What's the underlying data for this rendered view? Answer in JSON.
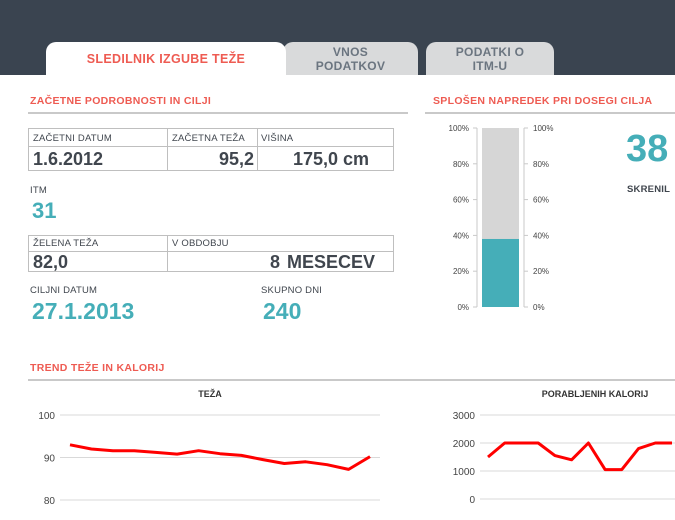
{
  "tabs": [
    {
      "label": "SLEDILNIK IZGUBE TEŽE"
    },
    {
      "label": "VNOS\nPODATKOV"
    },
    {
      "label": "PODATKI O\nITM-U"
    }
  ],
  "details": {
    "title": "ZAČETNE PODROBNOSTI IN CILJI",
    "start_date_label": "ZAČETNI DATUM",
    "start_date": "1.6.2012",
    "start_weight_label": "ZAČETNA TEŽA",
    "start_weight": "95,2",
    "height_label": "VIŠINA",
    "height": "175,0 cm",
    "bmi_label": "ITM",
    "bmi": "31",
    "goal_weight_label": "ŽELENA TEŽA",
    "goal_weight": "82,0",
    "period_label": "V OBDOBJU",
    "period_value": "8",
    "period_unit": "MESECEV",
    "goal_date_label": "CILJNI DATUM",
    "goal_date": "27.1.2013",
    "total_days_label": "SKUPNO DNI",
    "total_days": "240"
  },
  "progress": {
    "title": "SPLOŠEN NAPREDEK PRI DOSEGI CILJA",
    "percent_big": "38",
    "sub_label": "SKRENIL",
    "fill_fraction": 0.38,
    "ticks": [
      "100%",
      "80%",
      "60%",
      "40%",
      "20%",
      "0%"
    ]
  },
  "trend": {
    "title": "TREND TEŽE IN KALORIJ"
  },
  "colors": {
    "accent": "#ee5b52",
    "teal": "#45aeb8",
    "line": "#ff0000"
  },
  "chart_data": [
    {
      "type": "bar",
      "title": "",
      "categories": [
        ""
      ],
      "values": [
        38
      ],
      "ylim": [
        0,
        100
      ],
      "y_ticks": [
        "0%",
        "20%",
        "40%",
        "60%",
        "80%",
        "100%"
      ]
    },
    {
      "type": "line",
      "title": "TEŽA",
      "y": [
        93.0,
        92.0,
        91.6,
        91.6,
        91.2,
        90.8,
        91.6,
        90.9,
        90.5,
        89.5,
        88.6,
        89.0,
        88.3,
        87.2,
        90.2
      ],
      "ylim": [
        80,
        100
      ],
      "y_ticks": [
        "80",
        "90",
        "100"
      ],
      "grid": true
    },
    {
      "type": "line",
      "title": "PORABLJENIH KALORIJ",
      "y": [
        1500,
        2000,
        2000,
        2000,
        1550,
        1400,
        2000,
        1050,
        1050,
        1800,
        2000,
        2000
      ],
      "ylim": [
        0,
        3000
      ],
      "y_ticks": [
        "0",
        "1000",
        "2000",
        "3000"
      ],
      "grid": true
    }
  ]
}
